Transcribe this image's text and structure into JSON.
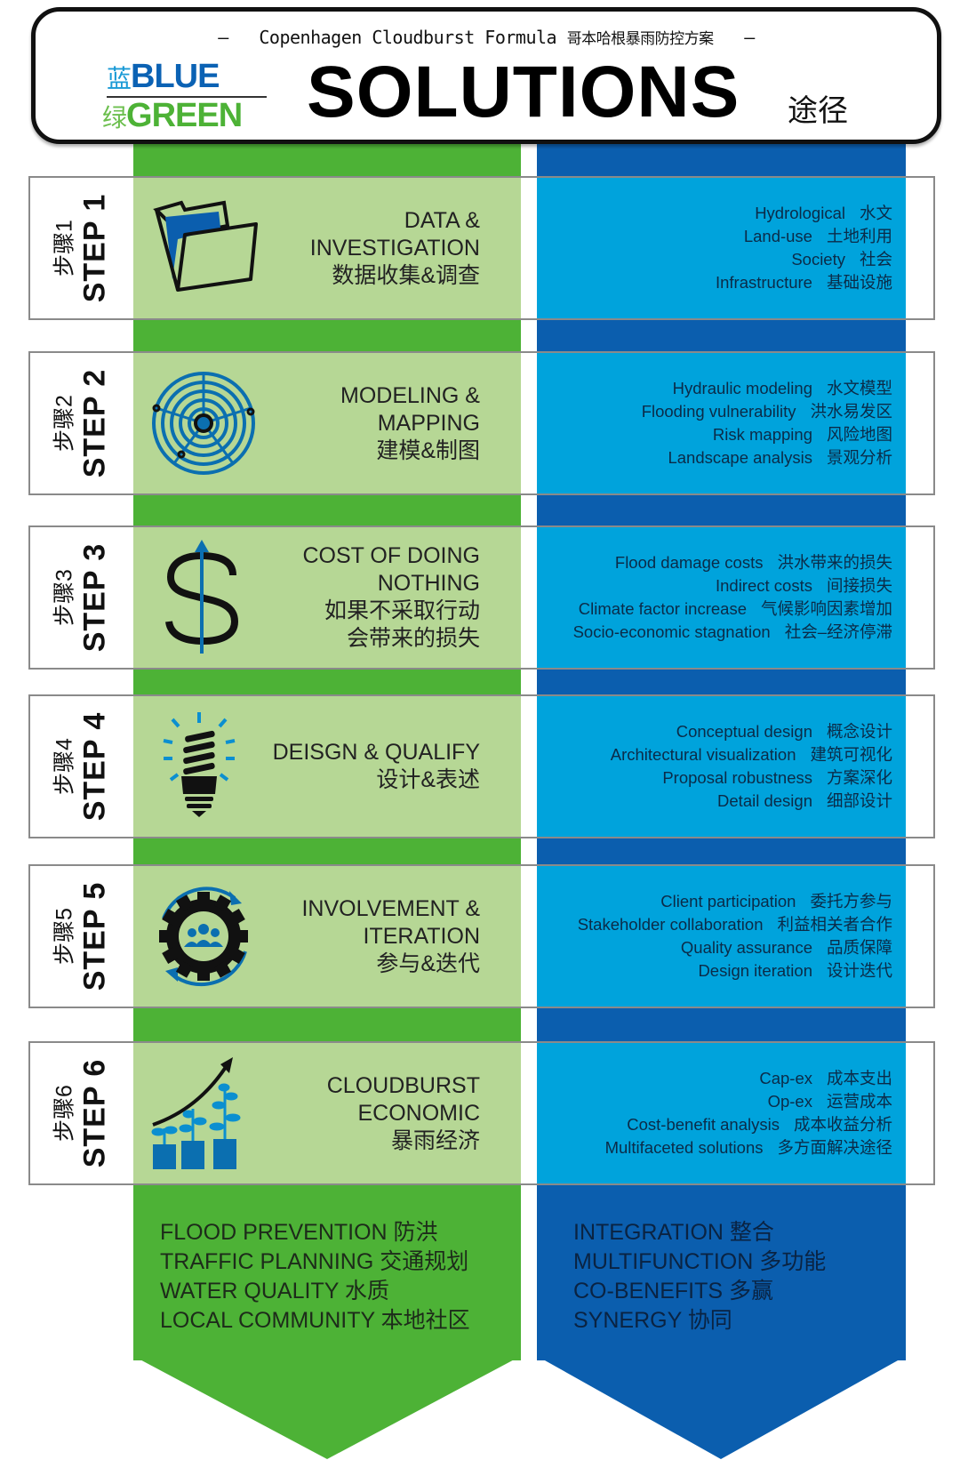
{
  "header": {
    "subtitle_dash_left": "–",
    "subtitle_en": "Copenhagen Cloudburst Formula",
    "subtitle_cn": "哥本哈根暴雨防控方案",
    "subtitle_dash_right": "–",
    "logo_blue_cn": "蓝",
    "logo_blue_en": "BLUE",
    "logo_green_cn": "绿",
    "logo_green_en": "GREEN",
    "title": "SOLUTIONS",
    "title_cn": "途径"
  },
  "colors": {
    "green": "#4db236",
    "light_green": "#b6d795",
    "blue": "#0b5eae",
    "light_blue": "#00a3dc"
  },
  "steps": [
    {
      "label": "STEP 1",
      "label_cn": "步骤1",
      "icon": "folder-icon",
      "title": [
        "DATA &",
        "INVESTIGATION",
        "数据收集&调查"
      ],
      "items": [
        [
          "Hydrological",
          "水文"
        ],
        [
          "Land-use",
          "土地利用"
        ],
        [
          "Society",
          "社会"
        ],
        [
          "Infrastructure",
          "基础设施"
        ]
      ]
    },
    {
      "label": "STEP 2",
      "label_cn": "步骤2",
      "icon": "radar-map-icon",
      "title": [
        "MODELING &",
        "MAPPING",
        "建模&制图"
      ],
      "items": [
        [
          "Hydraulic modeling",
          "水文模型"
        ],
        [
          "Flooding vulnerability",
          "洪水易发区"
        ],
        [
          "Risk mapping",
          "风险地图"
        ],
        [
          "Landscape analysis",
          "景观分析"
        ]
      ]
    },
    {
      "label": "STEP 3",
      "label_cn": "步骤3",
      "icon": "dollar-arrow-icon",
      "title": [
        "COST OF DOING",
        "NOTHING",
        "如果不采取行动",
        "会带来的损失"
      ],
      "items": [
        [
          "Flood damage costs",
          "洪水带来的损失"
        ],
        [
          "Indirect costs",
          "间接损失"
        ],
        [
          "Climate factor increase",
          "气候影响因素增加"
        ],
        [
          "Socio-economic stagnation",
          "社会–经济停滞"
        ]
      ]
    },
    {
      "label": "STEP 4",
      "label_cn": "步骤4",
      "icon": "lightbulb-icon",
      "title": [
        "DEISGN & QUALIFY",
        "设计&表述"
      ],
      "items": [
        [
          "Conceptual design",
          "概念设计"
        ],
        [
          "Architectural visualization",
          "建筑可视化"
        ],
        [
          "Proposal robustness",
          "方案深化"
        ],
        [
          "Detail design",
          "细部设计"
        ]
      ]
    },
    {
      "label": "STEP 5",
      "label_cn": "步骤5",
      "icon": "gear-people-cycle-icon",
      "title": [
        "INVOLVEMENT &",
        "ITERATION",
        "参与&迭代"
      ],
      "items": [
        [
          "Client participation",
          "委托方参与"
        ],
        [
          "Stakeholder collaboration",
          "利益相关者合作"
        ],
        [
          "Quality assurance",
          "品质保障"
        ],
        [
          "Design iteration",
          "设计迭代"
        ]
      ]
    },
    {
      "label": "STEP 6",
      "label_cn": "步骤6",
      "icon": "growth-plants-icon",
      "title": [
        "CLOUDBURST",
        "ECONOMIC",
        "暴雨经济"
      ],
      "items": [
        [
          "Cap-ex",
          "成本支出"
        ],
        [
          "Op-ex",
          "运营成本"
        ],
        [
          "Cost-benefit analysis",
          "成本收益分析"
        ],
        [
          "Multifaceted solutions",
          "多方面解决途径"
        ]
      ]
    }
  ],
  "bottom_green": [
    "FLOOD PREVENTION 防洪",
    "TRAFFIC PLANNING 交通规划",
    "WATER QUALITY 水质",
    "LOCAL COMMUNITY 本地社区"
  ],
  "bottom_blue": [
    "INTEGRATION 整合",
    "MULTIFUNCTION 多功能",
    "CO-BENEFITS 多赢",
    "SYNERGY 协同"
  ]
}
